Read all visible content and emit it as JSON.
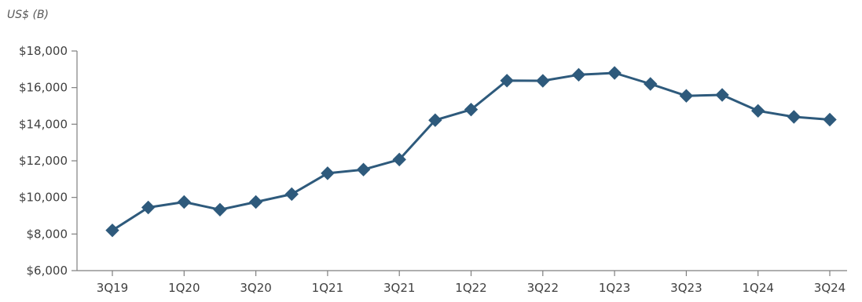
{
  "chart_data": {
    "type": "line",
    "unit_label": "US$ (B)",
    "title": "",
    "xlabel": "",
    "ylabel": "",
    "x": [
      "3Q19",
      "4Q19",
      "1Q20",
      "2Q20",
      "3Q20",
      "4Q20",
      "1Q21",
      "2Q21",
      "3Q21",
      "4Q21",
      "1Q22",
      "2Q22",
      "3Q22",
      "4Q22",
      "1Q23",
      "2Q23",
      "3Q23",
      "4Q23",
      "1Q24",
      "2Q24",
      "3Q24"
    ],
    "x_tick_labels": [
      "3Q19",
      "",
      "1Q20",
      "",
      "3Q20",
      "",
      "1Q21",
      "",
      "3Q21",
      "",
      "1Q22",
      "",
      "3Q22",
      "",
      "1Q23",
      "",
      "3Q23",
      "",
      "1Q24",
      "",
      "3Q24"
    ],
    "series": [
      {
        "values": [
          8200,
          9450,
          9750,
          9330,
          9750,
          10180,
          11320,
          11520,
          12070,
          14220,
          14800,
          16380,
          16370,
          16700,
          16800,
          16200,
          15550,
          15600,
          14730,
          14400,
          14250
        ]
      }
    ],
    "ylim": [
      6000,
      18000
    ],
    "y_ticks": [
      6000,
      8000,
      10000,
      12000,
      14000,
      16000,
      18000
    ],
    "y_tick_labels": [
      "$6,000",
      "$8,000",
      "$10,000",
      "$12,000",
      "$14,000",
      "$16,000",
      "$18,000"
    ],
    "grid": false,
    "legend": "none",
    "line_color": "#2e5a7c",
    "marker": "diamond",
    "axis_color": "#7f7f7f",
    "text_color": "#404040"
  }
}
